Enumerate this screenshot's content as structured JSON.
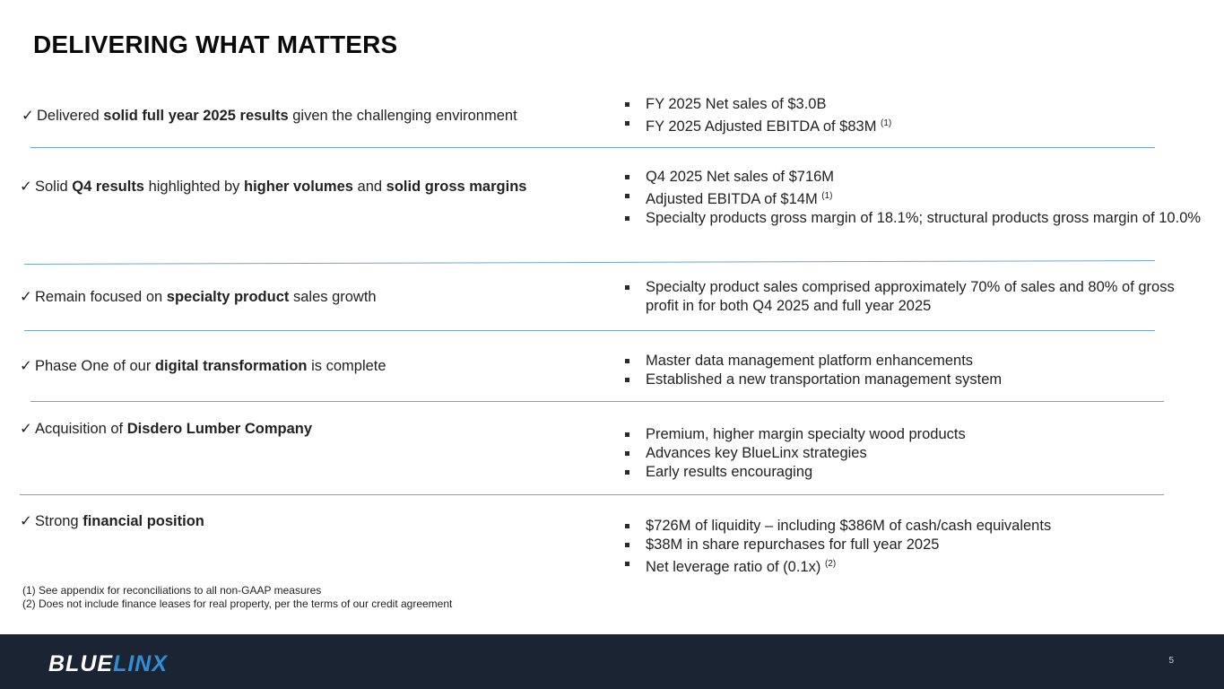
{
  "title": "DELIVERING WHAT MATTERS",
  "rows": [
    {
      "left": [
        {
          "t": "Delivered "
        },
        {
          "t": "solid full year 2025 results",
          "b": true
        },
        {
          "t": " given the challenging environment"
        }
      ],
      "right": [
        {
          "text": "FY 2025 Net sales of $3.0B"
        },
        {
          "text": "FY 2025 Adjusted EBITDA of $83M ",
          "sup": "(1)"
        }
      ]
    },
    {
      "left": [
        {
          "t": "Solid "
        },
        {
          "t": "Q4 results",
          "b": true
        },
        {
          "t": " highlighted by "
        },
        {
          "t": "higher volumes",
          "b": true
        },
        {
          "t": " and "
        },
        {
          "t": "solid gross margins",
          "b": true
        }
      ],
      "right": [
        {
          "text": "Q4 2025 Net sales of  $716M"
        },
        {
          "text": "Adjusted EBITDA of $14M ",
          "sup": "(1)"
        },
        {
          "text": "Specialty products gross margin of 18.1%; structural products gross margin of 10.0%"
        }
      ]
    },
    {
      "left": [
        {
          "t": "Remain focused on "
        },
        {
          "t": "specialty product",
          "b": true
        },
        {
          "t": " sales growth"
        }
      ],
      "right": [
        {
          "text": "Specialty product sales comprised approximately 70% of sales and 80% of gross profit in for both Q4 2025 and full year 2025"
        }
      ]
    },
    {
      "left": [
        {
          "t": "Phase One of our "
        },
        {
          "t": "digital transformation",
          "b": true
        },
        {
          "t": " is complete"
        }
      ],
      "right": [
        {
          "text": "Master data management platform enhancements"
        },
        {
          "text": "Established a new transportation management system"
        }
      ]
    },
    {
      "left": [
        {
          "t": "Acquisition of "
        },
        {
          "t": "Disdero Lumber Company",
          "b": true
        }
      ],
      "right": [
        {
          "text": "Premium, higher margin specialty wood products"
        },
        {
          "text": "Advances key BlueLinx strategies"
        },
        {
          "text": "Early results encouraging"
        }
      ]
    },
    {
      "left": [
        {
          "t": "Strong "
        },
        {
          "t": "financial position",
          "b": true
        }
      ],
      "right": [
        {
          "text": "$726M of liquidity – including $386M of cash/cash equivalents"
        },
        {
          "text": "$38M in share repurchases for full year 2025"
        },
        {
          "text": "Net leverage ratio of (0.1x) ",
          "sup": "(2)"
        }
      ]
    }
  ],
  "footnotes": [
    "(1)  See appendix for reconciliations to all non-GAAP measures",
    "(2)  Does not include finance leases for real property, per the terms of our credit agreement"
  ],
  "footer": {
    "logo_part1": "BLUE",
    "logo_part2": "LINX",
    "page_number": "5"
  },
  "colors": {
    "divider": "#6fa8c9",
    "footer_bg": "#1a2433",
    "logo_accent": "#2f8fd6"
  }
}
